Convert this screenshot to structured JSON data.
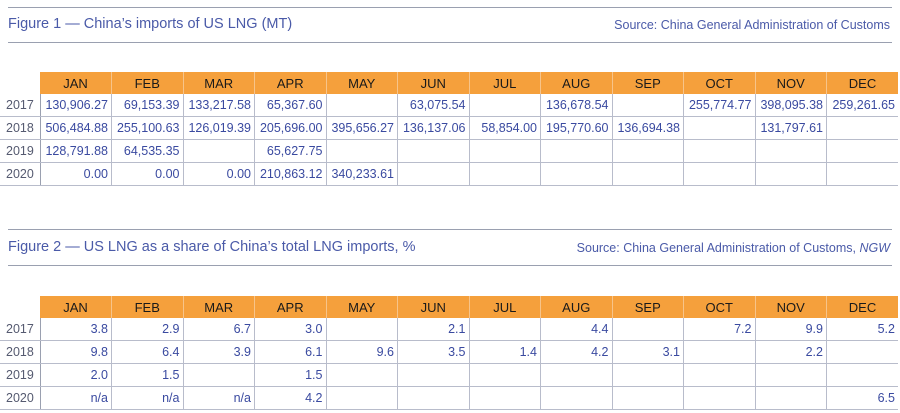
{
  "months": [
    "JAN",
    "FEB",
    "MAR",
    "APR",
    "MAY",
    "JUN",
    "JUL",
    "AUG",
    "SEP",
    "OCT",
    "NOV",
    "DEC"
  ],
  "header_color": "#f5a03c",
  "text_color": "#4a5aa8",
  "figure1": {
    "title": "Figure 1 — China’s imports of US LNG (MT)",
    "source": "Source: China General Administration of Customs",
    "rows": [
      {
        "year": "2017",
        "cells": [
          "130,906.27",
          "69,153.39",
          "133,217.58",
          "65,367.60",
          "",
          "63,075.54",
          "",
          "136,678.54",
          "",
          "255,774.77",
          "398,095.38",
          "259,261.65"
        ]
      },
      {
        "year": "2018",
        "cells": [
          "506,484.88",
          "255,100.63",
          "126,019.39",
          "205,696.00",
          "395,656.27",
          "136,137.06",
          "58,854.00",
          "195,770.60",
          "136,694.38",
          "",
          "131,797.61",
          ""
        ]
      },
      {
        "year": "2019",
        "cells": [
          "128,791.88",
          "64,535.35",
          "",
          "65,627.75",
          "",
          "",
          "",
          "",
          "",
          "",
          "",
          ""
        ]
      },
      {
        "year": "2020",
        "cells": [
          "0.00",
          "0.00",
          "0.00",
          "210,863.12",
          "340,233.61",
          "",
          "",
          "",
          "",
          "",
          "",
          ""
        ]
      }
    ]
  },
  "figure2": {
    "title": "Figure 2 — US LNG as a share of China’s total LNG imports, %",
    "source_prefix": "Source: China General Administration of Customs, ",
    "source_italic": "NGW",
    "rows": [
      {
        "year": "2017",
        "cells": [
          "3.8",
          "2.9",
          "6.7",
          "3.0",
          "",
          "2.1",
          "",
          "4.4",
          "",
          "7.2",
          "9.9",
          "5.2"
        ]
      },
      {
        "year": "2018",
        "cells": [
          "9.8",
          "6.4",
          "3.9",
          "6.1",
          "9.6",
          "3.5",
          "1.4",
          "4.2",
          "3.1",
          "",
          "2.2",
          ""
        ]
      },
      {
        "year": "2019",
        "cells": [
          "2.0",
          "1.5",
          "",
          "1.5",
          "",
          "",
          "",
          "",
          "",
          "",
          "",
          ""
        ]
      },
      {
        "year": "2020",
        "cells": [
          "n/a",
          "n/a",
          "n/a",
          "4.2",
          "",
          "",
          "",
          "",
          "",
          "",
          "",
          "6.5"
        ]
      }
    ]
  }
}
